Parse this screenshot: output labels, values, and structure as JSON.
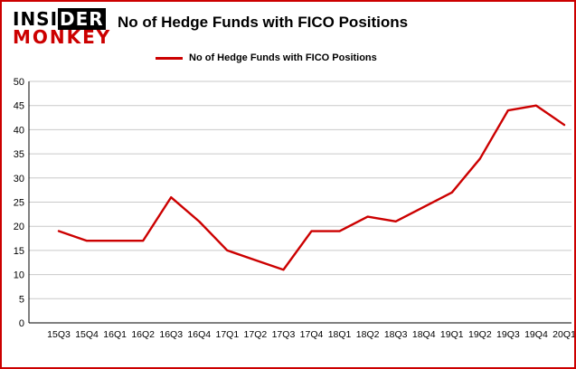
{
  "logo": {
    "part1": "INSI",
    "part2": "DER",
    "line2": "MONKEY"
  },
  "header": {
    "title": "No of Hedge Funds with FICO Positions"
  },
  "legend": {
    "label": "No of Hedge Funds with FICO Positions"
  },
  "colors": {
    "accent": "#cc0000",
    "grid": "#c9c9c9",
    "axis": "#000000"
  },
  "chart_data": {
    "type": "line",
    "title": "No of Hedge Funds with FICO Positions",
    "categories": [
      "15Q3",
      "15Q4",
      "16Q1",
      "16Q2",
      "16Q3",
      "16Q4",
      "17Q1",
      "17Q2",
      "17Q3",
      "17Q4",
      "18Q1",
      "18Q2",
      "18Q3",
      "18Q4",
      "19Q1",
      "19Q2",
      "19Q3",
      "19Q4",
      "20Q1"
    ],
    "values": [
      19,
      17,
      17,
      17,
      26,
      21,
      15,
      13,
      11,
      19,
      19,
      22,
      21,
      24,
      27,
      34,
      44,
      45,
      41
    ],
    "series_name": "No of Hedge Funds with FICO Positions",
    "xlabel": "",
    "ylabel": "",
    "ylim": [
      0,
      50
    ],
    "ytick_step": 5,
    "grid": true,
    "legend_position": "top"
  }
}
